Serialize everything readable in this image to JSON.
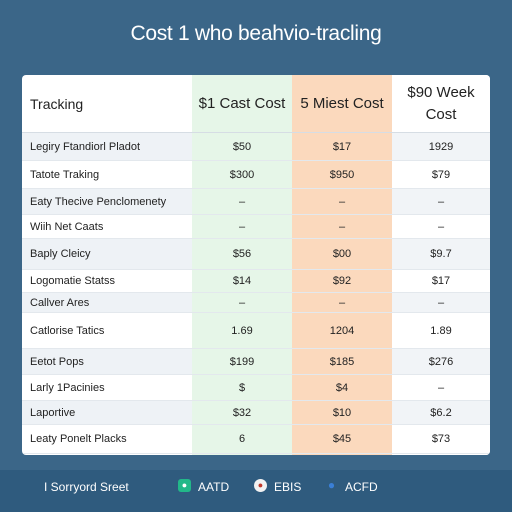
{
  "title": "Cost 1 who beahvio-tracling",
  "table": {
    "header": {
      "label": "Tracking",
      "col1": "$1 Cast Cost",
      "col2": "5 Miest Cost",
      "col3": "$90 Week Cost"
    },
    "rows": [
      {
        "label": "Legiry Ftandiorl Pladot",
        "v1": "$50",
        "v2": "$17",
        "v3": "1929"
      },
      {
        "label": "Tatote Traking",
        "v1": "$300",
        "v2": "$950",
        "v3": "$79"
      },
      {
        "label": "Eaty Thecive Penclomenety",
        "v1": "–",
        "v2": "–",
        "v3": "–"
      },
      {
        "label": "Wiih Net Caats",
        "v1": "–",
        "v2": "–",
        "v3": "–"
      },
      {
        "label": "Baply Cleicy",
        "v1": "$56",
        "v2": "$00",
        "v3": "$9.7"
      },
      {
        "label": "Logomatie Statss",
        "v1": "$14",
        "v2": "$92",
        "v3": "$17"
      },
      {
        "label": "Callver Ares",
        "v1": "–",
        "v2": "–",
        "v3": "–"
      },
      {
        "label": "Catlorise Tatics",
        "v1": "1.69",
        "v2": "1204",
        "v3": "1.89"
      },
      {
        "label": "Eetot Pops",
        "v1": "$199",
        "v2": "$185",
        "v3": "$276"
      },
      {
        "label": "Larly 1Pacinies",
        "v1": "$",
        "v2": "$4",
        "v3": "–"
      },
      {
        "label": "Laportive",
        "v1": "$32",
        "v2": "$10",
        "v3": "$6.2"
      },
      {
        "label": "Leaty Ponelt Placks",
        "v1": "6",
        "v2": "$45",
        "v3": "$73"
      }
    ]
  },
  "footer": {
    "left_text": "I Sorryord Sreet",
    "items": [
      {
        "icon": "chat-icon",
        "label": "AATD",
        "color": "#22b889"
      },
      {
        "icon": "badge-icon",
        "label": "EBIS",
        "color": "#f2f2f2"
      },
      {
        "icon": "location-icon",
        "label": "ACFD",
        "color": "#3a7fd6"
      }
    ]
  }
}
